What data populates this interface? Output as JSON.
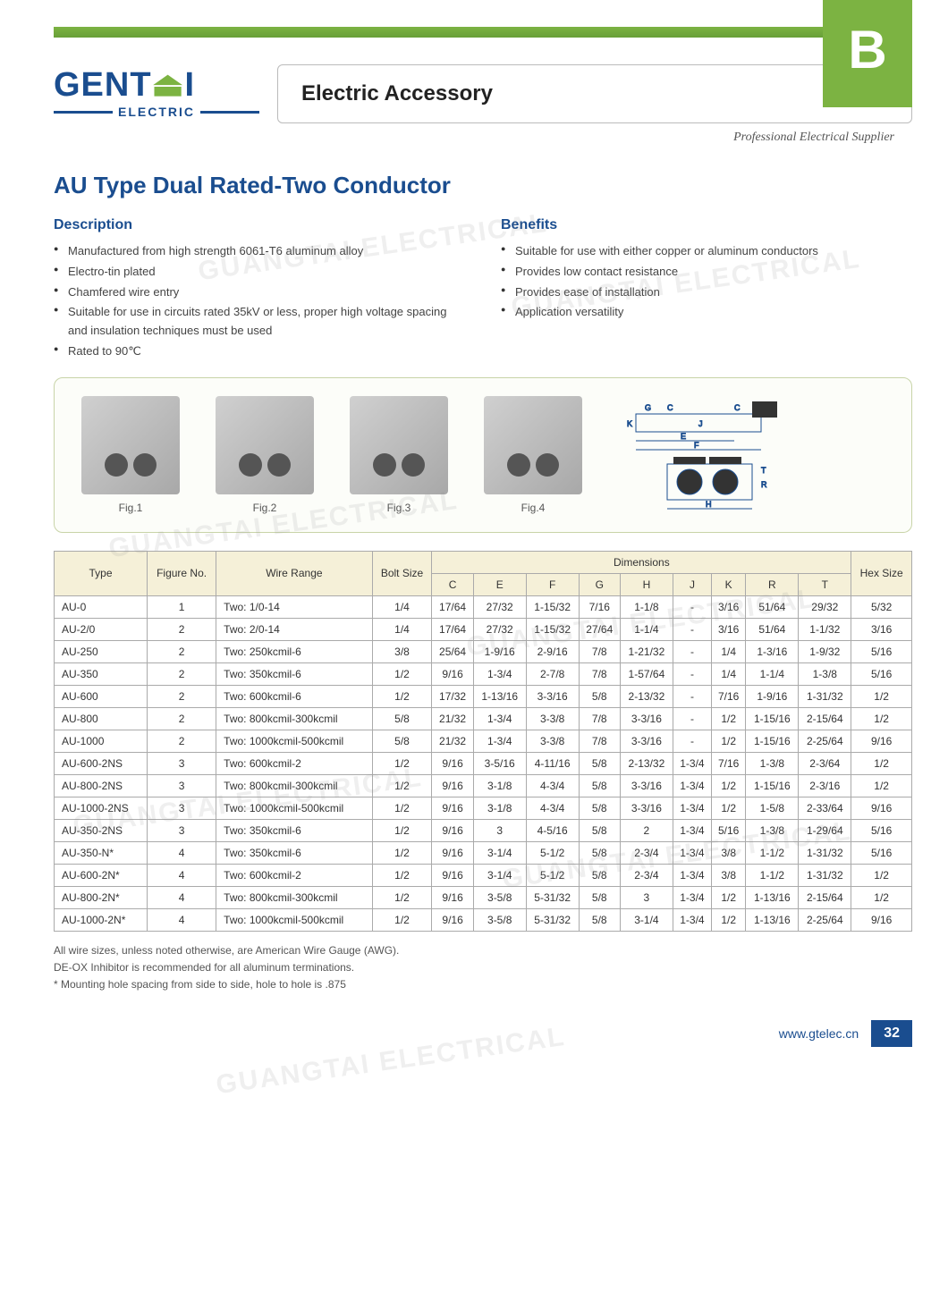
{
  "header": {
    "logo_text_1": "GENT",
    "logo_text_2": "I",
    "logo_sub": "ELECTRIC",
    "title": "Electric Accessory",
    "tab": "B",
    "tagline": "Professional Electrical Supplier"
  },
  "product_title": "AU Type Dual Rated-Two Conductor",
  "description": {
    "heading": "Description",
    "items": [
      "Manufactured from high strength 6061-T6 aluminum alloy",
      "Electro-tin plated",
      "Chamfered wire entry",
      "Suitable for use in circuits rated 35kV or less, proper high voltage spacing and insulation techniques must be used",
      "Rated to 90℃"
    ]
  },
  "benefits": {
    "heading": "Benefits",
    "items": [
      "Suitable for use with either copper or aluminum conductors",
      "Provides low contact resistance",
      "Provides ease of installation",
      "Application versatility"
    ]
  },
  "figures": [
    "Fig.1",
    "Fig.2",
    "Fig.3",
    "Fig.4"
  ],
  "table": {
    "columns_top": [
      "Type",
      "Figure No.",
      "Wire Range",
      "Bolt Size",
      "Dimensions",
      "Hex Size"
    ],
    "dim_cols": [
      "C",
      "E",
      "F",
      "G",
      "H",
      "J",
      "K",
      "R",
      "T"
    ],
    "rows": [
      [
        "AU-0",
        "1",
        "Two: 1/0-14",
        "1/4",
        "17/64",
        "27/32",
        "1-15/32",
        "7/16",
        "1-1/8",
        "-",
        "3/16",
        "51/64",
        "29/32",
        "5/32"
      ],
      [
        "AU-2/0",
        "2",
        "Two: 2/0-14",
        "1/4",
        "17/64",
        "27/32",
        "1-15/32",
        "27/64",
        "1-1/4",
        "-",
        "3/16",
        "51/64",
        "1-1/32",
        "3/16"
      ],
      [
        "AU-250",
        "2",
        "Two: 250kcmil-6",
        "3/8",
        "25/64",
        "1-9/16",
        "2-9/16",
        "7/8",
        "1-21/32",
        "-",
        "1/4",
        "1-3/16",
        "1-9/32",
        "5/16"
      ],
      [
        "AU-350",
        "2",
        "Two: 350kcmil-6",
        "1/2",
        "9/16",
        "1-3/4",
        "2-7/8",
        "7/8",
        "1-57/64",
        "-",
        "1/4",
        "1-1/4",
        "1-3/8",
        "5/16"
      ],
      [
        "AU-600",
        "2",
        "Two: 600kcmil-6",
        "1/2",
        "17/32",
        "1-13/16",
        "3-3/16",
        "5/8",
        "2-13/32",
        "-",
        "7/16",
        "1-9/16",
        "1-31/32",
        "1/2"
      ],
      [
        "AU-800",
        "2",
        "Two: 800kcmil-300kcmil",
        "5/8",
        "21/32",
        "1-3/4",
        "3-3/8",
        "7/8",
        "3-3/16",
        "-",
        "1/2",
        "1-15/16",
        "2-15/64",
        "1/2"
      ],
      [
        "AU-1000",
        "2",
        "Two: 1000kcmil-500kcmil",
        "5/8",
        "21/32",
        "1-3/4",
        "3-3/8",
        "7/8",
        "3-3/16",
        "-",
        "1/2",
        "1-15/16",
        "2-25/64",
        "9/16"
      ],
      [
        "AU-600-2NS",
        "3",
        "Two: 600kcmil-2",
        "1/2",
        "9/16",
        "3-5/16",
        "4-11/16",
        "5/8",
        "2-13/32",
        "1-3/4",
        "7/16",
        "1-3/8",
        "2-3/64",
        "1/2"
      ],
      [
        "AU-800-2NS",
        "3",
        "Two: 800kcmil-300kcmil",
        "1/2",
        "9/16",
        "3-1/8",
        "4-3/4",
        "5/8",
        "3-3/16",
        "1-3/4",
        "1/2",
        "1-15/16",
        "2-3/16",
        "1/2"
      ],
      [
        "AU-1000-2NS",
        "3",
        "Two: 1000kcmil-500kcmil",
        "1/2",
        "9/16",
        "3-1/8",
        "4-3/4",
        "5/8",
        "3-3/16",
        "1-3/4",
        "1/2",
        "1-5/8",
        "2-33/64",
        "9/16"
      ],
      [
        "AU-350-2NS",
        "3",
        "Two: 350kcmil-6",
        "1/2",
        "9/16",
        "3",
        "4-5/16",
        "5/8",
        "2",
        "1-3/4",
        "5/16",
        "1-3/8",
        "1-29/64",
        "5/16"
      ],
      [
        "AU-350-N*",
        "4",
        "Two: 350kcmil-6",
        "1/2",
        "9/16",
        "3-1/4",
        "5-1/2",
        "5/8",
        "2-3/4",
        "1-3/4",
        "3/8",
        "1-1/2",
        "1-31/32",
        "5/16"
      ],
      [
        "AU-600-2N*",
        "4",
        "Two: 600kcmil-2",
        "1/2",
        "9/16",
        "3-1/4",
        "5-1/2",
        "5/8",
        "2-3/4",
        "1-3/4",
        "3/8",
        "1-1/2",
        "1-31/32",
        "1/2"
      ],
      [
        "AU-800-2N*",
        "4",
        "Two: 800kcmil-300kcmil",
        "1/2",
        "9/16",
        "3-5/8",
        "5-31/32",
        "5/8",
        "3",
        "1-3/4",
        "1/2",
        "1-13/16",
        "2-15/64",
        "1/2"
      ],
      [
        "AU-1000-2N*",
        "4",
        "Two: 1000kcmil-500kcmil",
        "1/2",
        "9/16",
        "3-5/8",
        "5-31/32",
        "5/8",
        "3-1/4",
        "1-3/4",
        "1/2",
        "1-13/16",
        "2-25/64",
        "9/16"
      ]
    ]
  },
  "notes": [
    "All wire sizes, unless noted otherwise, are American Wire Gauge (AWG).",
    "DE-OX Inhibitor is recommended for all aluminum terminations.",
    "* Mounting hole spacing from side to side, hole to hole is .875"
  ],
  "footer": {
    "url": "www.gtelec.cn",
    "page": "32"
  },
  "watermark": "GUANGTAI ELECTRICAL",
  "colors": {
    "brand_blue": "#1a4d8f",
    "brand_green": "#7cb342",
    "table_header_bg": "#f5f0d8"
  }
}
